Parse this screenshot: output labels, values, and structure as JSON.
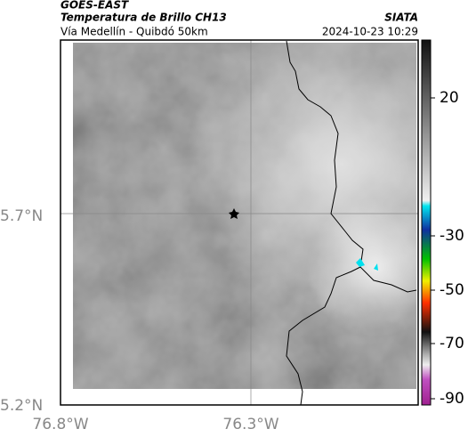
{
  "header": {
    "source": "GOES-EAST",
    "title": "Temperatura de Brillo CH13",
    "subtitle": "Vía Medellín - Quibdó 50km",
    "organization": "SIATA",
    "datetime": "2024-10-23 10:29"
  },
  "axes": {
    "latitude_labels": [
      "5.7°N",
      "5.2°N"
    ],
    "longitude_labels": [
      "76.8°W",
      "76.3°W"
    ]
  },
  "colorbar": {
    "ticks": [
      20,
      -30,
      -50,
      -70,
      -90
    ]
  }
}
